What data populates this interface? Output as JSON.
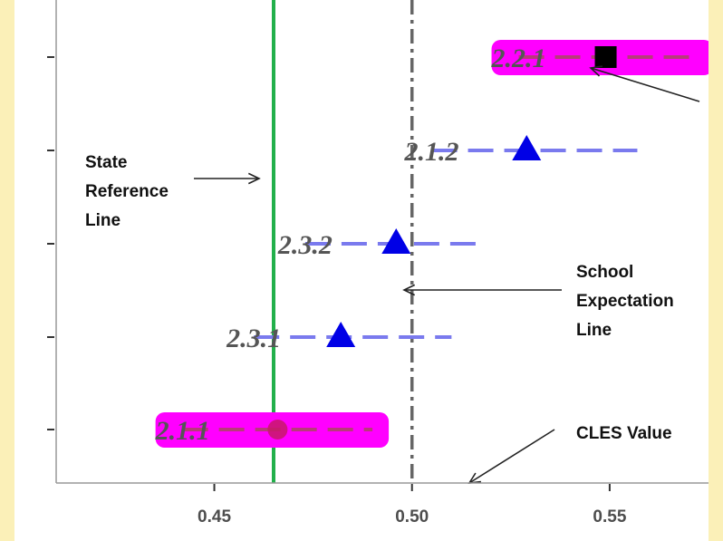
{
  "chart_data": {
    "type": "scatter",
    "title": "",
    "xlabel": "",
    "ylabel": "",
    "xlim": [
      0.41,
      0.575
    ],
    "x_ticks": [
      "0.45",
      "0.50",
      "0.55"
    ],
    "x_tick_values": [
      0.45,
      0.5,
      0.55
    ],
    "grid": false,
    "points": [
      {
        "label": "2.2.1",
        "value": 0.549,
        "low": 0.527,
        "high": 0.572,
        "marker": "square",
        "color": "#000000",
        "highlight": true
      },
      {
        "label": "2.1.2",
        "value": 0.529,
        "low": 0.505,
        "high": 0.557,
        "marker": "triangle",
        "color": "#0000e6",
        "highlight": false
      },
      {
        "label": "2.3.2",
        "value": 0.496,
        "low": 0.473,
        "high": 0.518,
        "marker": "triangle",
        "color": "#0000e6",
        "highlight": false
      },
      {
        "label": "2.3.1",
        "value": 0.482,
        "low": 0.46,
        "high": 0.51,
        "marker": "triangle",
        "color": "#0000e6",
        "highlight": false
      },
      {
        "label": "2.1.1",
        "value": 0.466,
        "low": 0.442,
        "high": 0.49,
        "marker": "circle",
        "color": "#c8186a",
        "highlight": true
      }
    ],
    "reference_lines": [
      {
        "name": "state",
        "value": 0.465,
        "style": "solid",
        "color": "#22b04b"
      },
      {
        "name": "school",
        "value": 0.5,
        "style": "dashdot",
        "color": "#666666"
      }
    ],
    "colors": {
      "highlight": "#ff00ff",
      "interval": "#7a7aee",
      "frame_border": "#fbf0b8"
    }
  },
  "annotations": {
    "state_ref": [
      "State",
      "Reference",
      "Line"
    ],
    "school_exp": [
      "School",
      "Expectation",
      "Line"
    ],
    "cles": "CLES Value"
  }
}
